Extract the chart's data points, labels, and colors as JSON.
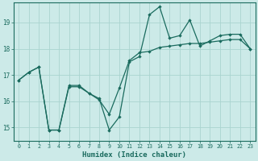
{
  "xlabel": "Humidex (Indice chaleur)",
  "background_color": "#cceae8",
  "line_color": "#1a6b5e",
  "grid_color": "#aad4d0",
  "xlim": [
    -0.5,
    23.5
  ],
  "ylim": [
    14.5,
    19.75
  ],
  "xticks": [
    0,
    1,
    2,
    3,
    4,
    5,
    6,
    7,
    8,
    9,
    10,
    11,
    12,
    13,
    14,
    15,
    16,
    17,
    18,
    19,
    20,
    21,
    22,
    23
  ],
  "yticks": [
    15,
    16,
    17,
    18,
    19
  ],
  "line1_x": [
    0,
    1,
    2,
    3,
    4,
    5,
    6,
    7,
    8,
    9,
    10,
    11,
    12,
    13,
    14,
    15,
    16,
    17,
    18,
    19,
    20,
    21,
    22,
    23
  ],
  "line1_y": [
    16.8,
    17.1,
    17.3,
    14.9,
    14.9,
    16.6,
    16.6,
    16.3,
    16.1,
    14.9,
    15.4,
    17.5,
    17.7,
    19.3,
    19.6,
    18.4,
    18.5,
    19.1,
    18.1,
    18.3,
    18.5,
    18.55,
    18.55,
    18.0
  ],
  "line2_x": [
    0,
    1,
    2,
    3,
    4,
    5,
    6,
    7,
    8,
    9,
    10,
    11,
    12,
    13,
    14,
    15,
    16,
    17,
    18,
    19,
    20,
    21,
    22,
    23
  ],
  "line2_y": [
    16.8,
    17.1,
    17.3,
    14.9,
    14.9,
    16.55,
    16.55,
    16.3,
    16.05,
    15.5,
    16.5,
    17.55,
    17.85,
    17.9,
    18.05,
    18.1,
    18.15,
    18.2,
    18.2,
    18.25,
    18.3,
    18.35,
    18.35,
    18.0
  ]
}
